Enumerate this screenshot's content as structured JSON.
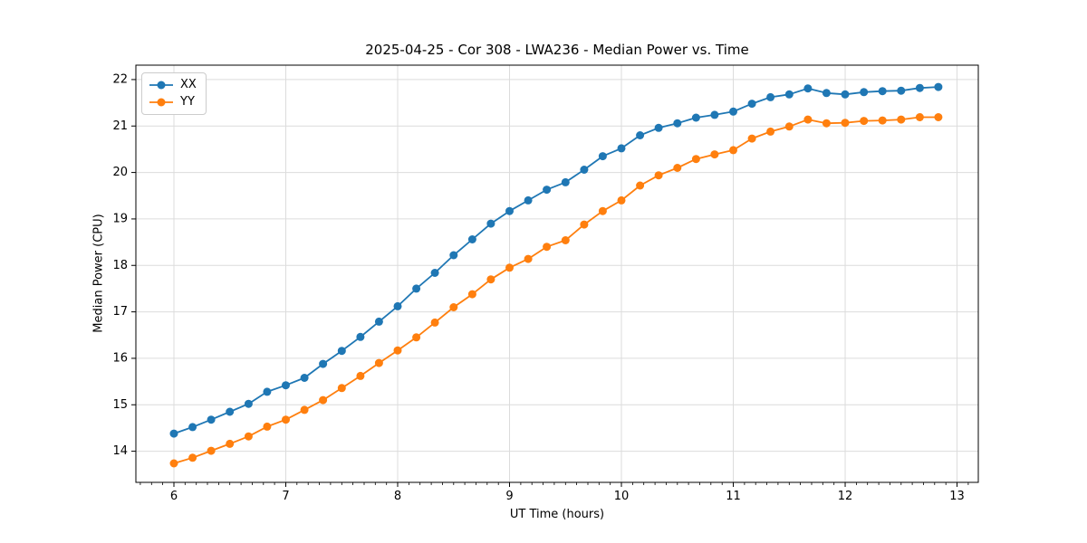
{
  "chart_data": {
    "type": "line",
    "title": "2025-04-25 - Cor 308 - LWA236 - Median Power vs. Time",
    "xlabel": "UT Time (hours)",
    "ylabel": "Median Power (CPU)",
    "xlim": [
      5.66,
      13.19
    ],
    "ylim": [
      13.33,
      22.31
    ],
    "xticks": [
      6,
      7,
      8,
      9,
      10,
      11,
      12,
      13
    ],
    "yticks": [
      14,
      15,
      16,
      17,
      18,
      19,
      20,
      21,
      22
    ],
    "x_minor_tick_step": 0.1,
    "grid": true,
    "legend_position": "upper-left",
    "x": [
      6.0,
      6.167,
      6.333,
      6.5,
      6.667,
      6.833,
      7.0,
      7.167,
      7.333,
      7.5,
      7.667,
      7.833,
      8.0,
      8.167,
      8.333,
      8.5,
      8.667,
      8.833,
      9.0,
      9.167,
      9.333,
      9.5,
      9.667,
      9.833,
      10.0,
      10.167,
      10.333,
      10.5,
      10.667,
      10.833,
      11.0,
      11.167,
      11.333,
      11.5,
      11.667,
      11.833,
      12.0,
      12.167,
      12.333,
      12.5,
      12.667,
      12.833
    ],
    "series": [
      {
        "name": "XX",
        "color": "#1f77b4",
        "values": [
          14.38,
          14.52,
          14.68,
          14.85,
          15.02,
          15.28,
          15.42,
          15.58,
          15.88,
          16.16,
          16.46,
          16.79,
          17.12,
          17.5,
          17.84,
          18.22,
          18.56,
          18.9,
          19.17,
          19.4,
          19.63,
          19.79,
          20.06,
          20.35,
          20.52,
          20.8,
          20.96,
          21.06,
          21.18,
          21.24,
          21.31,
          21.48,
          21.62,
          21.68,
          21.81,
          21.71,
          21.68,
          21.73,
          21.75,
          21.76,
          21.82,
          21.84
        ]
      },
      {
        "name": "YY",
        "color": "#ff7f0e",
        "values": [
          13.74,
          13.86,
          14.01,
          14.16,
          14.32,
          14.53,
          14.68,
          14.89,
          15.1,
          15.36,
          15.62,
          15.9,
          16.17,
          16.45,
          16.77,
          17.1,
          17.38,
          17.7,
          17.95,
          18.14,
          18.4,
          18.54,
          18.88,
          19.17,
          19.4,
          19.72,
          19.94,
          20.1,
          20.29,
          20.39,
          20.48,
          20.73,
          20.88,
          20.99,
          21.14,
          21.06,
          21.07,
          21.11,
          21.12,
          21.14,
          21.19,
          21.19
        ]
      }
    ],
    "styles": {
      "grid_color": "#dcdcdc",
      "spine_color": "#000000",
      "tick_color": "#000000",
      "background": "#ffffff",
      "line_width": 1.8,
      "marker_radius": 4.5
    }
  }
}
